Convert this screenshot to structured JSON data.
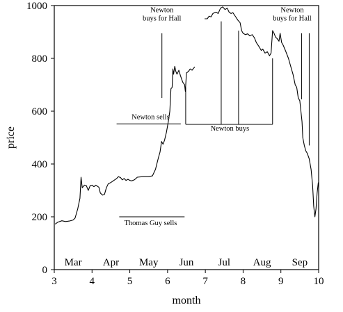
{
  "chart_data": {
    "type": "line",
    "title": "",
    "xlabel": "month",
    "ylabel": "price",
    "xlim": [
      3,
      10
    ],
    "ylim": [
      0,
      1000
    ],
    "xticks": [
      3,
      4,
      5,
      6,
      7,
      8,
      9,
      10
    ],
    "yticks": [
      0,
      200,
      400,
      600,
      800,
      1000
    ],
    "grid": false,
    "month_labels": [
      {
        "label": "Mar",
        "x": 3.5
      },
      {
        "label": "Apr",
        "x": 4.5
      },
      {
        "label": "May",
        "x": 5.5
      },
      {
        "label": "Jun",
        "x": 6.5
      },
      {
        "label": "Jul",
        "x": 7.5
      },
      {
        "label": "Aug",
        "x": 8.5
      },
      {
        "label": "Sep",
        "x": 9.5
      }
    ],
    "series": [
      {
        "segments": [
          [
            [
              3.02,
              172
            ],
            [
              3.1,
              180
            ],
            [
              3.2,
              185
            ],
            [
              3.3,
              182
            ],
            [
              3.4,
              184
            ],
            [
              3.5,
              188
            ],
            [
              3.55,
              195
            ],
            [
              3.62,
              230
            ],
            [
              3.68,
              270
            ],
            [
              3.71,
              350
            ],
            [
              3.74,
              310
            ],
            [
              3.8,
              320
            ],
            [
              3.85,
              318
            ],
            [
              3.9,
              300
            ],
            [
              3.95,
              318
            ],
            [
              4.0,
              320
            ],
            [
              4.05,
              314
            ],
            [
              4.1,
              320
            ],
            [
              4.18,
              312
            ],
            [
              4.22,
              290
            ],
            [
              4.28,
              282
            ],
            [
              4.33,
              285
            ],
            [
              4.38,
              310
            ],
            [
              4.43,
              325
            ],
            [
              4.5,
              330
            ],
            [
              4.58,
              338
            ],
            [
              4.65,
              345
            ],
            [
              4.7,
              352
            ],
            [
              4.76,
              348
            ],
            [
              4.8,
              340
            ],
            [
              4.85,
              345
            ],
            [
              4.9,
              338
            ],
            [
              4.95,
              342
            ],
            [
              5.0,
              338
            ],
            [
              5.05,
              336
            ],
            [
              5.12,
              340
            ],
            [
              5.2,
              350
            ],
            [
              5.35,
              352
            ],
            [
              5.5,
              352
            ],
            [
              5.6,
              355
            ],
            [
              5.68,
              380
            ],
            [
              5.76,
              425
            ],
            [
              5.8,
              445
            ],
            [
              5.84,
              485
            ],
            [
              5.88,
              475
            ],
            [
              5.92,
              490
            ],
            [
              5.97,
              520
            ],
            [
              6.02,
              560
            ],
            [
              6.06,
              600
            ],
            [
              6.09,
              685
            ],
            [
              6.12,
              690
            ],
            [
              6.14,
              760
            ],
            [
              6.16,
              740
            ],
            [
              6.19,
              770
            ],
            [
              6.22,
              750
            ],
            [
              6.25,
              740
            ],
            [
              6.3,
              755
            ],
            [
              6.34,
              735
            ],
            [
              6.4,
              710
            ],
            [
              6.45,
              700
            ],
            [
              6.47,
              675
            ],
            [
              6.5,
              745
            ],
            [
              6.55,
              750
            ],
            [
              6.6,
              760
            ],
            [
              6.65,
              755
            ],
            [
              6.72,
              768
            ]
          ],
          [
            [
              6.98,
              950
            ],
            [
              7.05,
              950
            ],
            [
              7.1,
              960
            ],
            [
              7.15,
              957
            ],
            [
              7.2,
              970
            ],
            [
              7.28,
              975
            ],
            [
              7.34,
              970
            ],
            [
              7.4,
              990
            ],
            [
              7.46,
              995
            ],
            [
              7.52,
              985
            ],
            [
              7.58,
              990
            ],
            [
              7.63,
              975
            ],
            [
              7.68,
              970
            ],
            [
              7.73,
              973
            ],
            [
              7.8,
              958
            ],
            [
              7.86,
              945
            ],
            [
              7.92,
              935
            ],
            [
              7.96,
              905
            ],
            [
              8.0,
              895
            ],
            [
              8.06,
              890
            ],
            [
              8.12,
              893
            ],
            [
              8.18,
              885
            ],
            [
              8.24,
              890
            ],
            [
              8.3,
              878
            ],
            [
              8.35,
              860
            ],
            [
              8.42,
              845
            ],
            [
              8.48,
              830
            ],
            [
              8.52,
              835
            ],
            [
              8.58,
              820
            ],
            [
              8.64,
              825
            ],
            [
              8.7,
              810
            ],
            [
              8.74,
              820
            ],
            [
              8.78,
              905
            ],
            [
              8.82,
              895
            ],
            [
              8.86,
              880
            ],
            [
              8.9,
              875
            ],
            [
              8.95,
              865
            ],
            [
              8.98,
              895
            ],
            [
              9.02,
              860
            ],
            [
              9.06,
              850
            ],
            [
              9.12,
              830
            ],
            [
              9.2,
              800
            ],
            [
              9.26,
              770
            ],
            [
              9.32,
              740
            ],
            [
              9.38,
              700
            ],
            [
              9.42,
              690
            ],
            [
              9.46,
              650
            ],
            [
              9.5,
              640
            ],
            [
              9.53,
              600
            ],
            [
              9.56,
              560
            ],
            [
              9.58,
              500
            ],
            [
              9.62,
              470
            ],
            [
              9.66,
              450
            ],
            [
              9.7,
              440
            ],
            [
              9.75,
              420
            ],
            [
              9.8,
              380
            ],
            [
              9.84,
              320
            ],
            [
              9.87,
              240
            ],
            [
              9.9,
              200
            ],
            [
              9.93,
              230
            ],
            [
              9.96,
              290
            ],
            [
              9.99,
              330
            ]
          ]
        ]
      }
    ],
    "annotations": [
      {
        "lines": [
          "Newton",
          "buys for Hall"
        ],
        "x": 5.85,
        "y": 975,
        "pointer": {
          "x": 5.85,
          "y1": 895,
          "y2": 650
        }
      },
      {
        "lines": [
          "Newton sells"
        ],
        "x": 5.55,
        "y": 570,
        "underline": {
          "x1": 4.65,
          "x2": 6.35,
          "y": 552
        }
      },
      {
        "lines": [
          "Newton buys"
        ],
        "x": 7.65,
        "y": 526,
        "bracket": {
          "x1": 6.48,
          "x2": 8.78,
          "y": 550,
          "ticks": [
            6.48,
            7.42,
            7.88,
            8.78
          ],
          "tick_tops": [
            690,
            940,
            905,
            800
          ]
        }
      },
      {
        "lines": [
          "Newton",
          "buys for Hall"
        ],
        "x": 9.3,
        "y": 975,
        "pointers": [
          {
            "x": 9.55,
            "y1": 895,
            "y2": 645
          },
          {
            "x": 9.75,
            "y1": 895,
            "y2": 470
          }
        ]
      },
      {
        "lines": [
          "Thomas Guy sells"
        ],
        "x": 5.55,
        "y": 168,
        "overline": {
          "x1": 4.72,
          "x2": 6.45,
          "y": 200
        }
      }
    ]
  }
}
